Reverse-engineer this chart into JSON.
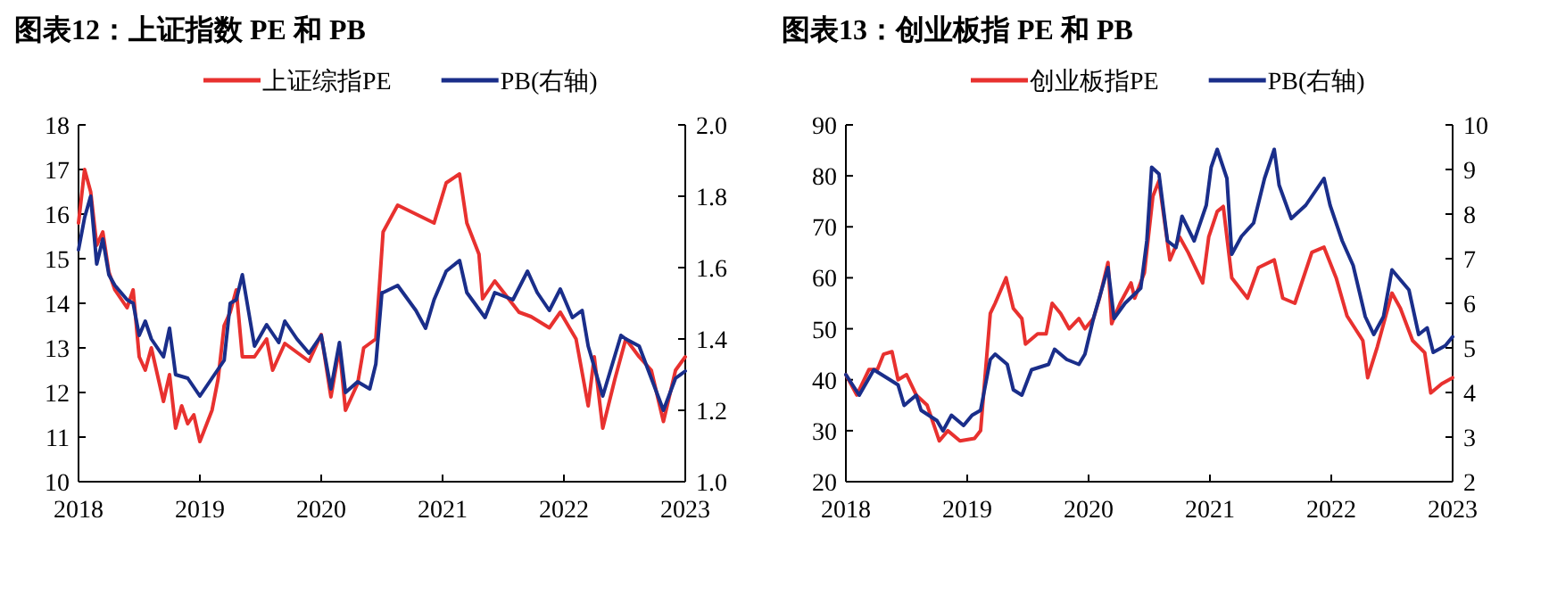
{
  "chart_data": [
    {
      "type": "line",
      "title": "图表12：上证指数 PE 和 PB",
      "legend": "top",
      "xlim": [
        2018,
        2023
      ],
      "xticks": [
        2018,
        2019,
        2020,
        2021,
        2022,
        2023
      ],
      "ylim": [
        10,
        18
      ],
      "yticks": [
        10,
        11,
        12,
        13,
        14,
        15,
        16,
        17,
        18
      ],
      "y2lim": [
        1.0,
        2.0
      ],
      "y2ticks": [
        {
          "value": 1.0,
          "label": "1.0"
        },
        {
          "value": 1.2,
          "label": "1.2"
        },
        {
          "value": 1.4,
          "label": "1.4"
        },
        {
          "value": 1.6,
          "label": "1.6"
        },
        {
          "value": 1.8,
          "label": "1.8"
        },
        {
          "value": 2.0,
          "label": "2.0"
        }
      ],
      "series": [
        {
          "name": "上证综指PE",
          "color": "#e8312f",
          "x": [
            2018.0,
            2018.05,
            2018.1,
            2018.15,
            2018.2,
            2018.25,
            2018.3,
            2018.4,
            2018.45,
            2018.5,
            2018.55,
            2018.6,
            2018.7,
            2018.75,
            2018.8,
            2018.85,
            2018.9,
            2018.95,
            2019.0,
            2019.1,
            2019.15,
            2019.2,
            2019.25,
            2019.3,
            2019.35,
            2019.45,
            2019.55,
            2019.6,
            2019.7,
            2019.8,
            2019.9,
            2020.0,
            2020.08,
            2020.15,
            2020.2,
            2020.3,
            2020.35,
            2020.45,
            2020.51,
            2020.63,
            2020.78,
            2020.93,
            2021.03,
            2021.14,
            2021.2,
            2021.3,
            2021.33,
            2021.43,
            2021.63,
            2021.73,
            2021.88,
            2021.97,
            2022.1,
            2022.2,
            2022.25,
            2022.32,
            2022.42,
            2022.51,
            2022.62,
            2022.72,
            2022.82,
            2022.92,
            2023.0
          ],
          "values": [
            15.8,
            17.0,
            16.5,
            15.3,
            15.6,
            14.7,
            14.3,
            13.9,
            14.3,
            12.8,
            12.5,
            13.0,
            11.8,
            12.4,
            11.2,
            11.7,
            11.3,
            11.5,
            10.9,
            11.6,
            12.3,
            13.5,
            13.8,
            14.3,
            12.8,
            12.8,
            13.2,
            12.5,
            13.1,
            12.9,
            12.7,
            13.3,
            11.9,
            13.0,
            11.6,
            12.2,
            13.0,
            13.2,
            15.6,
            16.2,
            16.0,
            15.8,
            16.7,
            16.9,
            15.8,
            15.1,
            14.1,
            14.5,
            13.8,
            13.7,
            13.45,
            13.8,
            13.2,
            11.7,
            12.8,
            11.2,
            12.3,
            13.2,
            12.8,
            12.5,
            11.35,
            12.5,
            12.8
          ]
        },
        {
          "name": "PB(右轴)",
          "color": "#1a2e8a",
          "axis": "y2",
          "x": [
            2018.0,
            2018.05,
            2018.1,
            2018.15,
            2018.2,
            2018.25,
            2018.3,
            2018.4,
            2018.45,
            2018.5,
            2018.55,
            2018.6,
            2018.7,
            2018.75,
            2018.8,
            2018.9,
            2019.0,
            2019.1,
            2019.2,
            2019.25,
            2019.3,
            2019.35,
            2019.45,
            2019.55,
            2019.65,
            2019.7,
            2019.8,
            2019.9,
            2020.0,
            2020.08,
            2020.15,
            2020.2,
            2020.3,
            2020.4,
            2020.45,
            2020.5,
            2020.51,
            2020.63,
            2020.78,
            2020.86,
            2020.93,
            2021.03,
            2021.14,
            2021.2,
            2021.35,
            2021.43,
            2021.58,
            2021.7,
            2021.78,
            2021.88,
            2021.97,
            2022.07,
            2022.15,
            2022.2,
            2022.32,
            2022.47,
            2022.51,
            2022.62,
            2022.72,
            2022.82,
            2022.92,
            2023.0
          ],
          "values": [
            1.65,
            1.74,
            1.8,
            1.61,
            1.68,
            1.58,
            1.55,
            1.51,
            1.5,
            1.41,
            1.45,
            1.4,
            1.35,
            1.43,
            1.3,
            1.29,
            1.24,
            1.29,
            1.34,
            1.5,
            1.51,
            1.58,
            1.38,
            1.44,
            1.39,
            1.45,
            1.4,
            1.36,
            1.41,
            1.26,
            1.39,
            1.25,
            1.28,
            1.26,
            1.33,
            1.53,
            1.53,
            1.55,
            1.48,
            1.43,
            1.51,
            1.59,
            1.62,
            1.53,
            1.46,
            1.53,
            1.51,
            1.59,
            1.53,
            1.48,
            1.54,
            1.46,
            1.48,
            1.38,
            1.24,
            1.41,
            1.4,
            1.38,
            1.29,
            1.2,
            1.29,
            1.31
          ]
        }
      ]
    },
    {
      "type": "line",
      "title": "图表13：创业板指 PE 和 PB",
      "legend": "top",
      "xlim": [
        2018,
        2023
      ],
      "xticks": [
        2018,
        2019,
        2020,
        2021,
        2022,
        2023
      ],
      "ylim": [
        20,
        90
      ],
      "yticks": [
        20,
        30,
        40,
        50,
        60,
        70,
        80,
        90
      ],
      "y2lim": [
        2,
        10
      ],
      "y2ticks": [
        2,
        3,
        4,
        5,
        6,
        7,
        8,
        9,
        10
      ],
      "series": [
        {
          "name": "创业板指PE",
          "color": "#e8312f",
          "x": [
            2018.0,
            2018.09,
            2018.19,
            2018.26,
            2018.31,
            2018.38,
            2018.43,
            2018.5,
            2018.58,
            2018.67,
            2018.77,
            2018.84,
            2018.94,
            2019.06,
            2019.11,
            2019.19,
            2019.23,
            2019.32,
            2019.38,
            2019.45,
            2019.48,
            2019.58,
            2019.65,
            2019.7,
            2019.77,
            2019.84,
            2019.92,
            2019.97,
            2020.04,
            2020.09,
            2020.16,
            2020.19,
            2020.26,
            2020.35,
            2020.38,
            2020.46,
            2020.53,
            2020.58,
            2020.67,
            2020.75,
            2020.82,
            2020.94,
            2020.99,
            2021.06,
            2021.11,
            2021.18,
            2021.31,
            2021.4,
            2021.53,
            2021.6,
            2021.7,
            2021.84,
            2021.94,
            2022.04,
            2022.13,
            2022.26,
            2022.3,
            2022.38,
            2022.5,
            2022.57,
            2022.67,
            2022.77,
            2022.82,
            2022.91,
            2023.0
          ],
          "values": [
            41,
            37,
            42,
            42,
            45,
            45.5,
            40,
            41,
            37,
            35,
            28,
            30,
            28,
            28.5,
            30,
            53,
            55,
            60,
            54,
            52,
            47,
            49,
            49,
            55,
            53,
            50,
            52,
            50,
            52,
            56,
            63,
            51,
            55,
            59,
            56,
            61,
            76,
            79,
            63.5,
            68,
            65,
            59,
            68,
            73,
            74,
            60,
            56,
            62,
            63.5,
            56,
            55,
            65,
            66,
            60,
            52.5,
            47.7,
            40.4,
            46.5,
            57,
            54,
            47.7,
            45.3,
            37.4,
            39.2,
            40.4
          ]
        },
        {
          "name": "PB(右轴)",
          "color": "#1a2e8a",
          "axis": "y2",
          "x": [
            2018.0,
            2018.11,
            2018.23,
            2018.36,
            2018.43,
            2018.48,
            2018.58,
            2018.62,
            2018.75,
            2018.8,
            2018.87,
            2018.97,
            2019.04,
            2019.11,
            2019.19,
            2019.23,
            2019.33,
            2019.38,
            2019.45,
            2019.53,
            2019.67,
            2019.72,
            2019.82,
            2019.92,
            2019.97,
            2020.04,
            2020.16,
            2020.21,
            2020.3,
            2020.43,
            2020.48,
            2020.52,
            2020.58,
            2020.65,
            2020.72,
            2020.77,
            2020.87,
            2020.97,
            2021.01,
            2021.06,
            2021.14,
            2021.18,
            2021.26,
            2021.36,
            2021.45,
            2021.53,
            2021.57,
            2021.67,
            2021.79,
            2021.94,
            2021.99,
            2022.09,
            2022.18,
            2022.28,
            2022.35,
            2022.43,
            2022.5,
            2022.64,
            2022.72,
            2022.79,
            2022.84,
            2022.94,
            2023.0
          ],
          "values": [
            4.4,
            3.94,
            4.51,
            4.29,
            4.17,
            3.71,
            3.94,
            3.6,
            3.37,
            3.14,
            3.49,
            3.26,
            3.49,
            3.6,
            4.74,
            4.86,
            4.63,
            4.06,
            3.94,
            4.51,
            4.63,
            4.97,
            4.74,
            4.63,
            4.86,
            5.66,
            6.8,
            5.66,
            6.0,
            6.34,
            7.4,
            9.05,
            8.9,
            7.4,
            7.25,
            7.95,
            7.4,
            8.2,
            9.05,
            9.45,
            8.8,
            7.1,
            7.5,
            7.8,
            8.8,
            9.45,
            8.65,
            7.9,
            8.2,
            8.8,
            8.2,
            7.4,
            6.85,
            5.7,
            5.3,
            5.7,
            6.75,
            6.3,
            5.3,
            5.45,
            4.9,
            5.05,
            5.25
          ]
        }
      ]
    }
  ]
}
